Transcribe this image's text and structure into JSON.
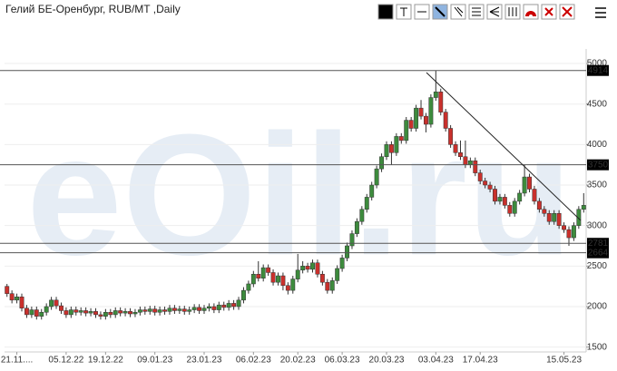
{
  "chart_data": {
    "type": "candlestick",
    "title": "Гелий БЕ-Оренбург, RUB/MT ,Daily",
    "watermark": "eOil.ru",
    "up_color": "#3d8b3d",
    "down_color": "#c9302c",
    "grid": true,
    "ylim": [
      1440,
      5090
    ],
    "yticks": [
      1500,
      2000,
      2500,
      3000,
      3500,
      4000,
      4500,
      5000
    ],
    "levels": [
      4914,
      3750,
      2781,
      2664
    ],
    "categories": [
      null,
      null,
      "21.11....",
      null,
      null,
      null,
      null,
      null,
      null,
      null,
      null,
      null,
      "05.12.22",
      null,
      null,
      null,
      null,
      null,
      null,
      null,
      "19.12.22",
      null,
      null,
      null,
      null,
      null,
      null,
      null,
      null,
      null,
      "09.01.23",
      null,
      null,
      null,
      null,
      null,
      null,
      null,
      null,
      null,
      "23.01.23",
      null,
      null,
      null,
      null,
      null,
      null,
      null,
      null,
      null,
      "06.02.23",
      null,
      null,
      null,
      null,
      null,
      null,
      null,
      null,
      "20.02.23",
      null,
      null,
      null,
      null,
      null,
      null,
      null,
      null,
      "06.03.23",
      null,
      null,
      null,
      null,
      null,
      null,
      null,
      null,
      "20.03.23",
      null,
      null,
      null,
      null,
      null,
      null,
      null,
      null,
      null,
      "03.04.23",
      null,
      null,
      null,
      null,
      null,
      null,
      null,
      null,
      "17.04.23",
      null,
      null,
      null,
      null,
      null,
      null,
      null,
      null,
      null,
      null,
      null,
      null,
      null,
      null,
      null,
      null,
      "15.05.23",
      null,
      null,
      null,
      null
    ],
    "ohlc": [
      [
        2250,
        2280,
        2120,
        2160
      ],
      [
        2160,
        2200,
        2040,
        2080
      ],
      [
        2080,
        2160,
        2040,
        2120
      ],
      [
        2120,
        2160,
        1940,
        1980
      ],
      [
        1980,
        2020,
        1860,
        1900
      ],
      [
        1900,
        2000,
        1860,
        1960
      ],
      [
        1960,
        2000,
        1840,
        1880
      ],
      [
        1880,
        1970,
        1840,
        1930
      ],
      [
        1930,
        2040,
        1890,
        2000
      ],
      [
        2000,
        2120,
        1960,
        2080
      ],
      [
        2080,
        2120,
        1970,
        2010
      ],
      [
        2010,
        2050,
        1910,
        1950
      ],
      [
        1950,
        1990,
        1860,
        1900
      ],
      [
        1900,
        2000,
        1860,
        1960
      ],
      [
        1960,
        2000,
        1890,
        1930
      ],
      [
        1930,
        1990,
        1890,
        1950
      ],
      [
        1950,
        1990,
        1880,
        1920
      ],
      [
        1920,
        1980,
        1880,
        1940
      ],
      [
        1940,
        1980,
        1860,
        1900
      ],
      [
        1900,
        1940,
        1840,
        1880
      ],
      [
        1880,
        1970,
        1840,
        1930
      ],
      [
        1930,
        1970,
        1860,
        1900
      ],
      [
        1900,
        1990,
        1860,
        1950
      ],
      [
        1950,
        1990,
        1880,
        1920
      ],
      [
        1920,
        1980,
        1880,
        1940
      ],
      [
        1940,
        1980,
        1870,
        1910
      ],
      [
        1910,
        1970,
        1870,
        1930
      ],
      [
        1930,
        2000,
        1890,
        1960
      ],
      [
        1960,
        2000,
        1900,
        1940
      ],
      [
        1940,
        2010,
        1900,
        1970
      ],
      [
        1970,
        2010,
        1890,
        1930
      ],
      [
        1930,
        2000,
        1890,
        1960
      ],
      [
        1960,
        2000,
        1900,
        1940
      ],
      [
        1940,
        2020,
        1900,
        1980
      ],
      [
        1980,
        2020,
        1910,
        1950
      ],
      [
        1950,
        2010,
        1910,
        1970
      ],
      [
        1970,
        2010,
        1900,
        1940
      ],
      [
        1940,
        2000,
        1900,
        1960
      ],
      [
        1960,
        2030,
        1920,
        1990
      ],
      [
        1990,
        2030,
        1910,
        1950
      ],
      [
        1950,
        2020,
        1910,
        1980
      ],
      [
        1980,
        2040,
        1940,
        2000
      ],
      [
        2000,
        2040,
        1920,
        1960
      ],
      [
        1960,
        2060,
        1920,
        2020
      ],
      [
        2020,
        2060,
        1950,
        1990
      ],
      [
        1990,
        2080,
        1950,
        2040
      ],
      [
        2040,
        2080,
        1960,
        2000
      ],
      [
        2000,
        2120,
        1960,
        2080
      ],
      [
        2080,
        2240,
        2040,
        2200
      ],
      [
        2200,
        2320,
        2160,
        2280
      ],
      [
        2280,
        2440,
        2240,
        2400
      ],
      [
        2400,
        2560,
        2310,
        2350
      ],
      [
        2350,
        2520,
        2310,
        2480
      ],
      [
        2480,
        2520,
        2380,
        2420
      ],
      [
        2420,
        2460,
        2260,
        2300
      ],
      [
        2300,
        2420,
        2260,
        2380
      ],
      [
        2380,
        2420,
        2200,
        2260
      ],
      [
        2260,
        2300,
        2150,
        2200
      ],
      [
        2200,
        2380,
        2160,
        2340
      ],
      [
        2340,
        2650,
        2300,
        2450
      ],
      [
        2450,
        2560,
        2410,
        2500
      ],
      [
        2500,
        2540,
        2420,
        2460
      ],
      [
        2460,
        2580,
        2420,
        2540
      ],
      [
        2540,
        2580,
        2360,
        2400
      ],
      [
        2400,
        2440,
        2260,
        2300
      ],
      [
        2300,
        2340,
        2160,
        2200
      ],
      [
        2200,
        2360,
        2160,
        2320
      ],
      [
        2320,
        2510,
        2280,
        2470
      ],
      [
        2470,
        2640,
        2430,
        2600
      ],
      [
        2600,
        2790,
        2560,
        2750
      ],
      [
        2750,
        2940,
        2710,
        2900
      ],
      [
        2900,
        3090,
        2860,
        3050
      ],
      [
        3050,
        3240,
        3010,
        3200
      ],
      [
        3200,
        3390,
        3160,
        3350
      ],
      [
        3350,
        3540,
        3310,
        3500
      ],
      [
        3500,
        3740,
        3460,
        3700
      ],
      [
        3700,
        3890,
        3660,
        3850
      ],
      [
        3850,
        4040,
        3810,
        4000
      ],
      [
        4000,
        4040,
        3750,
        3900
      ],
      [
        3900,
        4140,
        3860,
        4100
      ],
      [
        4100,
        4140,
        4010,
        4050
      ],
      [
        4050,
        4340,
        4010,
        4300
      ],
      [
        4300,
        4340,
        4160,
        4200
      ],
      [
        4200,
        4490,
        4160,
        4450
      ],
      [
        4450,
        4550,
        4310,
        4350
      ],
      [
        4350,
        4390,
        4150,
        4250
      ],
      [
        4250,
        4620,
        4210,
        4580
      ],
      [
        4580,
        4914,
        4540,
        4650
      ],
      [
        4650,
        4690,
        4360,
        4400
      ],
      [
        4400,
        4440,
        4160,
        4200
      ],
      [
        4200,
        4240,
        3960,
        4000
      ],
      [
        4000,
        4040,
        3860,
        3900
      ],
      [
        3900,
        4050,
        3810,
        3850
      ],
      [
        3850,
        4050,
        3710,
        3750
      ],
      [
        3750,
        3840,
        3710,
        3800
      ],
      [
        3800,
        3840,
        3610,
        3650
      ],
      [
        3650,
        3690,
        3510,
        3550
      ],
      [
        3550,
        3590,
        3460,
        3500
      ],
      [
        3500,
        3540,
        3410,
        3450
      ],
      [
        3450,
        3490,
        3260,
        3300
      ],
      [
        3300,
        3390,
        3260,
        3350
      ],
      [
        3350,
        3390,
        3210,
        3250
      ],
      [
        3250,
        3290,
        3110,
        3150
      ],
      [
        3150,
        3340,
        3110,
        3300
      ],
      [
        3300,
        3440,
        3260,
        3400
      ],
      [
        3400,
        3750,
        3360,
        3600
      ],
      [
        3600,
        3640,
        3410,
        3450
      ],
      [
        3450,
        3490,
        3260,
        3300
      ],
      [
        3300,
        3340,
        3160,
        3200
      ],
      [
        3200,
        3240,
        3110,
        3150
      ],
      [
        3150,
        3190,
        3010,
        3050
      ],
      [
        3050,
        3190,
        3010,
        3150
      ],
      [
        3150,
        3190,
        2960,
        3000
      ],
      [
        3000,
        3040,
        2910,
        2950
      ],
      [
        2950,
        2990,
        2750,
        2850
      ],
      [
        2850,
        3040,
        2810,
        3000
      ],
      [
        3000,
        3240,
        2960,
        3200
      ],
      [
        3200,
        3400,
        3160,
        3250
      ]
    ]
  }
}
